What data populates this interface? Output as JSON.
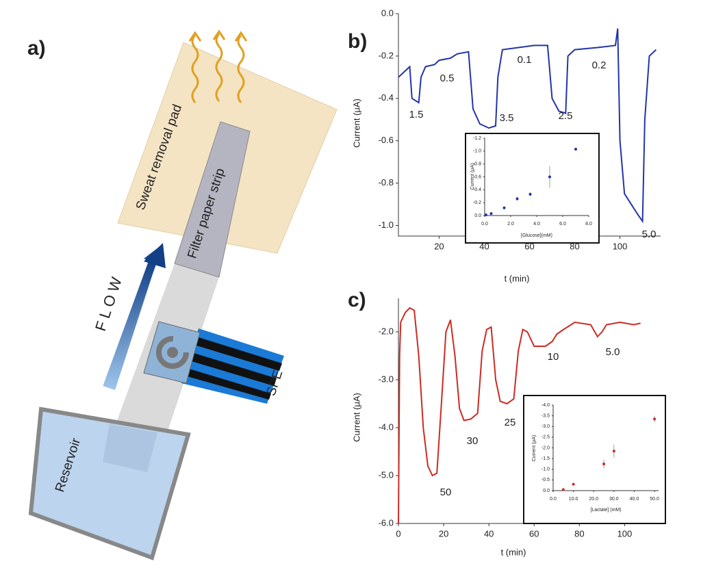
{
  "panels": {
    "a": "a)",
    "b": "b)",
    "c": "c)"
  },
  "diagram": {
    "pad": "Sweat removal pad",
    "strip": "Filter paper strip",
    "flow": "F L O W",
    "electrode": "SPE",
    "reservoir": "Reservoir"
  },
  "chart_data": [
    {
      "type": "line",
      "x_label": "t (min)",
      "y_label": "Current (μA)",
      "color": "#2233aa",
      "x": [
        2,
        5,
        7,
        8,
        11,
        12,
        14,
        18,
        20,
        25,
        28,
        33,
        35,
        38,
        42,
        45,
        46,
        48,
        55,
        62,
        68,
        70,
        73,
        76,
        77,
        80,
        90,
        98,
        99,
        100,
        102,
        105,
        108,
        110,
        111,
        113,
        116
      ],
      "values": [
        -0.3,
        -0.27,
        -0.25,
        -0.4,
        -0.42,
        -0.3,
        -0.25,
        -0.24,
        -0.22,
        -0.21,
        -0.19,
        -0.18,
        -0.45,
        -0.52,
        -0.54,
        -0.53,
        -0.3,
        -0.17,
        -0.16,
        -0.15,
        -0.15,
        -0.4,
        -0.46,
        -0.47,
        -0.2,
        -0.17,
        -0.16,
        -0.15,
        -0.07,
        -0.6,
        -0.85,
        -0.9,
        -0.95,
        -0.98,
        -0.5,
        -0.2,
        -0.17
      ],
      "annotations": [
        "1.5",
        "0.5",
        "3.5",
        "0.1",
        "2.5",
        "0.2",
        "5.0"
      ],
      "xlim": [
        2,
        118
      ],
      "xticks": [
        20,
        40,
        60,
        80,
        100
      ],
      "ylim": [
        -1.05,
        0
      ],
      "yticks": [
        {
          "value": 0,
          "label": "0.0"
        },
        -0.2,
        -0.4,
        -0.6,
        -0.8,
        {
          "value": -1,
          "label": "-1.0"
        }
      ]
    },
    {
      "type": "scatter",
      "x_label": "[Glucose](mM)",
      "y_label": "Current (μA)",
      "color": "#2233aa",
      "x": [
        0.1,
        0.5,
        1.5,
        2.5,
        3.5,
        5.0,
        7.0
      ],
      "values": [
        -0.01,
        -0.03,
        -0.12,
        -0.26,
        -0.33,
        -0.6,
        -1.03
      ],
      "errors": [
        0.01,
        0.01,
        0.02,
        0.03,
        0.03,
        0.17,
        0.02
      ],
      "xlim": [
        0,
        8
      ],
      "xticks": [
        {
          "value": 0,
          "label": "0.0"
        },
        {
          "value": 2,
          "label": "2.0"
        },
        {
          "value": 4,
          "label": "4.0"
        },
        {
          "value": 6,
          "label": "6.0"
        },
        {
          "value": 8,
          "label": "8.0"
        }
      ],
      "ylim": [
        0,
        -1.2
      ],
      "yticks": [
        {
          "value": 0,
          "label": "0.0"
        },
        -0.2,
        -0.4,
        -0.6,
        -0.8,
        {
          "value": -1,
          "label": "-1.0"
        },
        -1.2
      ]
    },
    {
      "type": "line",
      "x_label": "t (min)",
      "y_label": "Current (μA)",
      "color": "#cc2a22",
      "x": [
        0,
        0.5,
        1,
        3,
        5,
        7,
        9,
        11,
        13,
        15,
        17,
        19,
        21,
        23,
        25,
        27,
        29,
        32,
        35,
        37,
        39,
        41,
        43,
        45,
        48,
        51,
        53,
        55,
        57,
        60,
        65,
        68,
        70,
        73,
        78,
        85,
        88,
        90,
        92,
        98,
        104,
        107
      ],
      "values": [
        -6.0,
        -2.5,
        -1.8,
        -1.6,
        -1.5,
        -1.55,
        -2.5,
        -4.0,
        -4.8,
        -5.0,
        -4.95,
        -3.5,
        -2.0,
        -1.75,
        -2.5,
        -3.6,
        -3.85,
        -3.82,
        -3.7,
        -2.4,
        -1.95,
        -1.9,
        -3.0,
        -3.45,
        -3.5,
        -3.4,
        -2.4,
        -1.95,
        -2.0,
        -2.3,
        -2.3,
        -2.2,
        -2.05,
        -1.95,
        -1.8,
        -1.85,
        -2.1,
        -2.0,
        -1.85,
        -1.8,
        -1.85,
        -1.82
      ],
      "annotations": [
        "50",
        "30",
        "25",
        "10",
        "5.0"
      ],
      "xlim": [
        0,
        115
      ],
      "xticks": [
        0,
        20,
        40,
        60,
        80,
        100
      ],
      "ylim": [
        -6.0,
        -1.3
      ],
      "yticks": [
        {
          "value": -2,
          "label": "-2.0"
        },
        {
          "value": -3,
          "label": "-3.0"
        },
        {
          "value": -4,
          "label": "-4.0"
        },
        {
          "value": -5,
          "label": "-5.0"
        },
        {
          "value": -6,
          "label": "-6.0"
        }
      ]
    },
    {
      "type": "scatter",
      "x_label": "[Lactate] (mM)",
      "y_label": "Current (μA)",
      "color": "#cc2a22",
      "x": [
        5,
        10,
        25,
        30,
        50
      ],
      "values": [
        -0.05,
        -0.3,
        -1.25,
        -1.85,
        -3.35
      ],
      "errors": [
        0.03,
        0.05,
        0.2,
        0.3,
        0.15
      ],
      "xlim": [
        0,
        52
      ],
      "xticks": [
        {
          "value": 0,
          "label": "0.0"
        },
        {
          "value": 10,
          "label": "10.0"
        },
        {
          "value": 20,
          "label": "20.0"
        },
        {
          "value": 30,
          "label": "30.0"
        },
        {
          "value": 40,
          "label": "40.0"
        },
        {
          "value": 50,
          "label": "50.0"
        }
      ],
      "ylim": [
        0,
        -4.0
      ],
      "yticks": [
        {
          "value": 0,
          "label": "0.0"
        },
        -0.5,
        {
          "value": -1,
          "label": "-1.0"
        },
        -1.5,
        {
          "value": -2,
          "label": "-2.0"
        },
        -2.5,
        {
          "value": -3,
          "label": "-3.0"
        },
        -3.5,
        {
          "value": -4,
          "label": "-4.0"
        }
      ]
    }
  ]
}
